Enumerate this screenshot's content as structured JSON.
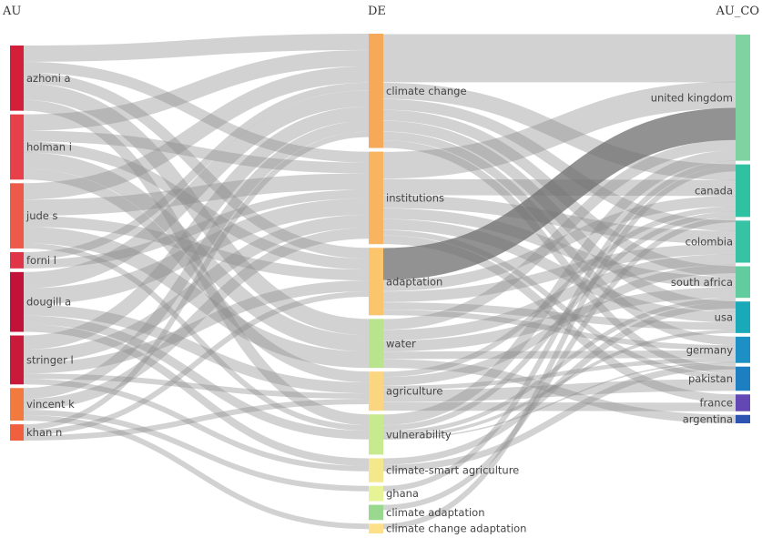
{
  "chart_data": {
    "type": "sankey",
    "columns": [
      {
        "key": "AU",
        "title": "AU"
      },
      {
        "key": "DE",
        "title": "DE"
      },
      {
        "key": "AU_CO",
        "title": "AU_CO"
      }
    ],
    "nodes": {
      "AU": [
        {
          "id": "azhoni",
          "label": "azhoni a",
          "value": 6,
          "color": "#d41f3a"
        },
        {
          "id": "holman",
          "label": "holman i",
          "value": 6,
          "color": "#e8404a"
        },
        {
          "id": "jude",
          "label": "jude s",
          "value": 6,
          "color": "#ee5a4a"
        },
        {
          "id": "forni",
          "label": "forni l",
          "value": 1.5,
          "color": "#e03448"
        },
        {
          "id": "dougill",
          "label": "dougill a",
          "value": 5.5,
          "color": "#c2123a"
        },
        {
          "id": "stringer",
          "label": "stringer l",
          "value": 4.5,
          "color": "#c91a3c"
        },
        {
          "id": "vincent",
          "label": "vincent k",
          "value": 3,
          "color": "#f27a3e"
        },
        {
          "id": "khan",
          "label": "khan n",
          "value": 1.5,
          "color": "#f0603e"
        }
      ],
      "DE": [
        {
          "id": "climate_change",
          "label": "climate change",
          "value": 10.5,
          "color": "#f7a95a"
        },
        {
          "id": "institutions",
          "label": "institutions",
          "value": 8.5,
          "color": "#f9b462"
        },
        {
          "id": "adaptation",
          "label": "adaptation",
          "value": 6.2,
          "color": "#fbc56e"
        },
        {
          "id": "water",
          "label": "water",
          "value": 4.5,
          "color": "#b9e48d"
        },
        {
          "id": "agriculture",
          "label": "agriculture",
          "value": 3.6,
          "color": "#fbd680"
        },
        {
          "id": "vulnerability",
          "label": "vulnerability",
          "value": 3.7,
          "color": "#c8ea8e"
        },
        {
          "id": "csa",
          "label": "climate-smart agriculture",
          "value": 2.2,
          "color": "#f4e88c"
        },
        {
          "id": "ghana",
          "label": "ghana",
          "value": 1.4,
          "color": "#e6f396"
        },
        {
          "id": "climate_adaptation",
          "label": "climate adaptation",
          "value": 1.4,
          "color": "#9bd88f"
        },
        {
          "id": "cca",
          "label": "climate change adaptation",
          "value": 0.9,
          "color": "#fde08a"
        }
      ],
      "AU_CO": [
        {
          "id": "uk",
          "label": "united kingdom",
          "value": 12,
          "color": "#7fd3a0"
        },
        {
          "id": "canada",
          "label": "canada",
          "value": 5,
          "color": "#2ec2a3"
        },
        {
          "id": "colombia",
          "label": "colombia",
          "value": 4,
          "color": "#36c3a5"
        },
        {
          "id": "south_africa",
          "label": "south africa",
          "value": 3,
          "color": "#63cc9e"
        },
        {
          "id": "usa",
          "label": "usa",
          "value": 3,
          "color": "#19a9b8"
        },
        {
          "id": "germany",
          "label": "germany",
          "value": 2.5,
          "color": "#1c8fc5"
        },
        {
          "id": "pakistan",
          "label": "pakistan",
          "value": 2.3,
          "color": "#1d7ec2"
        },
        {
          "id": "france",
          "label": "france",
          "value": 1.6,
          "color": "#6247b5"
        },
        {
          "id": "argentina",
          "label": "argentina",
          "value": 0.8,
          "color": "#2d54b0"
        }
      ]
    },
    "links": [
      {
        "source": "azhoni",
        "target": "climate_change",
        "value": 1.5
      },
      {
        "source": "azhoni",
        "target": "adaptation",
        "value": 1
      },
      {
        "source": "azhoni",
        "target": "water",
        "value": 1.5
      },
      {
        "source": "azhoni",
        "target": "institutions",
        "value": 1
      },
      {
        "source": "azhoni",
        "target": "vulnerability",
        "value": 1
      },
      {
        "source": "holman",
        "target": "climate_change",
        "value": 1.5
      },
      {
        "source": "holman",
        "target": "institutions",
        "value": 1
      },
      {
        "source": "holman",
        "target": "water",
        "value": 1.5
      },
      {
        "source": "holman",
        "target": "adaptation",
        "value": 1
      },
      {
        "source": "holman",
        "target": "agriculture",
        "value": 1
      },
      {
        "source": "jude",
        "target": "climate_change",
        "value": 1.5
      },
      {
        "source": "jude",
        "target": "institutions",
        "value": 1.5
      },
      {
        "source": "jude",
        "target": "adaptation",
        "value": 1
      },
      {
        "source": "jude",
        "target": "water",
        "value": 1.5
      },
      {
        "source": "jude",
        "target": "vulnerability",
        "value": 0.5
      },
      {
        "source": "forni",
        "target": "climate_change",
        "value": 0.7
      },
      {
        "source": "forni",
        "target": "institutions",
        "value": 0.8
      },
      {
        "source": "dougill",
        "target": "climate_change",
        "value": 1.5
      },
      {
        "source": "dougill",
        "target": "institutions",
        "value": 1.5
      },
      {
        "source": "dougill",
        "target": "agriculture",
        "value": 1
      },
      {
        "source": "dougill",
        "target": "vulnerability",
        "value": 0.8
      },
      {
        "source": "dougill",
        "target": "csa",
        "value": 0.7
      },
      {
        "source": "stringer",
        "target": "climate_change",
        "value": 1.3
      },
      {
        "source": "stringer",
        "target": "institutions",
        "value": 1.2
      },
      {
        "source": "stringer",
        "target": "adaptation",
        "value": 1
      },
      {
        "source": "stringer",
        "target": "csa",
        "value": 0.5
      },
      {
        "source": "stringer",
        "target": "agriculture",
        "value": 0.5
      },
      {
        "source": "vincent",
        "target": "climate_change",
        "value": 1
      },
      {
        "source": "vincent",
        "target": "institutions",
        "value": 1
      },
      {
        "source": "vincent",
        "target": "ghana",
        "value": 0.5
      },
      {
        "source": "vincent",
        "target": "cca",
        "value": 0.5
      },
      {
        "source": "khan",
        "target": "climate_change",
        "value": 0.5
      },
      {
        "source": "khan",
        "target": "agriculture",
        "value": 0.5
      },
      {
        "source": "khan",
        "target": "adaptation",
        "value": 0.5
      },
      {
        "source": "climate_change",
        "target": "uk",
        "value": 4.5
      },
      {
        "source": "climate_change",
        "target": "canada",
        "value": 1.5
      },
      {
        "source": "climate_change",
        "target": "colombia",
        "value": 1
      },
      {
        "source": "climate_change",
        "target": "south_africa",
        "value": 1
      },
      {
        "source": "climate_change",
        "target": "usa",
        "value": 1
      },
      {
        "source": "climate_change",
        "target": "germany",
        "value": 0.8
      },
      {
        "source": "climate_change",
        "target": "pakistan",
        "value": 0.7
      },
      {
        "source": "institutions",
        "target": "uk",
        "value": 2.5
      },
      {
        "source": "institutions",
        "target": "canada",
        "value": 1.5
      },
      {
        "source": "institutions",
        "target": "colombia",
        "value": 1.2
      },
      {
        "source": "institutions",
        "target": "south_africa",
        "value": 1
      },
      {
        "source": "institutions",
        "target": "usa",
        "value": 1
      },
      {
        "source": "institutions",
        "target": "france",
        "value": 0.8
      },
      {
        "source": "institutions",
        "target": "pakistan",
        "value": 0.5
      },
      {
        "source": "adaptation",
        "target": "uk",
        "value": 3,
        "dark": true
      },
      {
        "source": "adaptation",
        "target": "canada",
        "value": 1
      },
      {
        "source": "adaptation",
        "target": "colombia",
        "value": 1
      },
      {
        "source": "adaptation",
        "target": "usa",
        "value": 0.7
      },
      {
        "source": "adaptation",
        "target": "germany",
        "value": 0.5
      },
      {
        "source": "water",
        "target": "uk",
        "value": 1
      },
      {
        "source": "water",
        "target": "colombia",
        "value": 1
      },
      {
        "source": "water",
        "target": "south_africa",
        "value": 1
      },
      {
        "source": "water",
        "target": "germany",
        "value": 0.7
      },
      {
        "source": "water",
        "target": "argentina",
        "value": 0.8
      },
      {
        "source": "agriculture",
        "target": "canada",
        "value": 0.5
      },
      {
        "source": "agriculture",
        "target": "colombia",
        "value": 0.8
      },
      {
        "source": "agriculture",
        "target": "pakistan",
        "value": 1.1
      },
      {
        "source": "agriculture",
        "target": "france",
        "value": 0.8
      },
      {
        "source": "agriculture",
        "target": "germany",
        "value": 0.4
      },
      {
        "source": "vulnerability",
        "target": "uk",
        "value": 1
      },
      {
        "source": "vulnerability",
        "target": "canada",
        "value": 0.5
      },
      {
        "source": "vulnerability",
        "target": "usa",
        "value": 0.3
      },
      {
        "source": "vulnerability",
        "target": "germany",
        "value": 0.1
      },
      {
        "source": "vulnerability",
        "target": "south_africa",
        "value": 0.4
      },
      {
        "source": "csa",
        "target": "south_africa",
        "value": 0.6
      },
      {
        "source": "csa",
        "target": "germany",
        "value": 0.6
      },
      {
        "source": "ghana",
        "target": "uk",
        "value": 0.5
      },
      {
        "source": "climate_adaptation",
        "target": "canada",
        "value": 0.5
      },
      {
        "source": "cca",
        "target": "uk",
        "value": 0.5
      }
    ]
  }
}
